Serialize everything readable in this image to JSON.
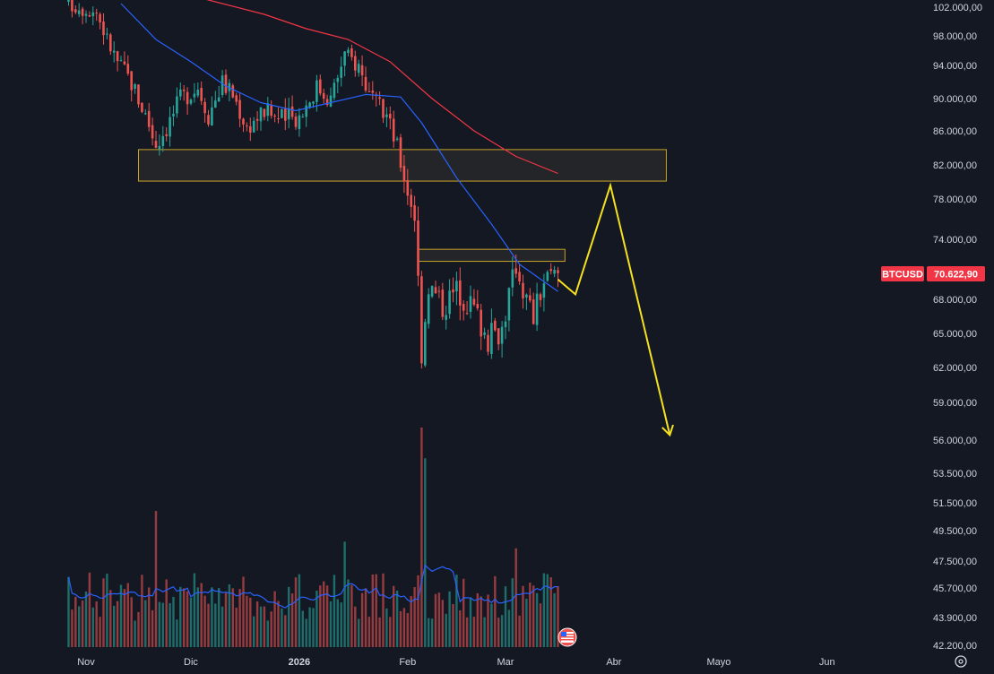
{
  "chart_data": {
    "type": "candlestick",
    "symbol_label": "BTCUSD",
    "last_price_label": "70.622,90",
    "last_price": 70622.9,
    "y_ticks": [
      {
        "value": 102000,
        "label": "102.000,00"
      },
      {
        "value": 98000,
        "label": "98.000,00"
      },
      {
        "value": 94000,
        "label": "94.000,00"
      },
      {
        "value": 90000,
        "label": "90.000,00"
      },
      {
        "value": 86000,
        "label": "86.000,00"
      },
      {
        "value": 82000,
        "label": "82.000,00"
      },
      {
        "value": 78000,
        "label": "78.000,00"
      },
      {
        "value": 74000,
        "label": "74.000,00"
      },
      {
        "value": 68000,
        "label": "68.000,00"
      },
      {
        "value": 65000,
        "label": "65.000,00"
      },
      {
        "value": 62000,
        "label": "62.000,00"
      },
      {
        "value": 59000,
        "label": "59.000,00"
      },
      {
        "value": 56000,
        "label": "56.000,00"
      },
      {
        "value": 53500,
        "label": "53.500,00"
      },
      {
        "value": 51500,
        "label": "51.500,00"
      },
      {
        "value": 49500,
        "label": "49.500,00"
      },
      {
        "value": 47500,
        "label": "47.500,00"
      },
      {
        "value": 45700,
        "label": "45.700,00"
      },
      {
        "value": 43900,
        "label": "43.900,00"
      },
      {
        "value": 42200,
        "label": "42.200,00"
      }
    ],
    "x_ticks": [
      {
        "date": "2025-11-01",
        "label": "Nov"
      },
      {
        "date": "2025-12-01",
        "label": "Dic"
      },
      {
        "date": "2026-01-01",
        "label": "2026"
      },
      {
        "date": "2026-02-01",
        "label": "Feb"
      },
      {
        "date": "2026-03-01",
        "label": "Mar"
      },
      {
        "date": "2026-04-01",
        "label": "Abr"
      },
      {
        "date": "2026-05-01",
        "label": "Mayo"
      },
      {
        "date": "2026-06-01",
        "label": "Jun"
      }
    ],
    "x_range": [
      "2025-10-23",
      "2026-06-16"
    ],
    "price_anchors": [
      {
        "date": "2025-10-27",
        "price": 102500
      },
      {
        "date": "2025-11-04",
        "price": 101500
      },
      {
        "date": "2025-11-07",
        "price": 97500
      },
      {
        "date": "2025-11-10",
        "price": 94500
      },
      {
        "date": "2025-11-14",
        "price": 92000
      },
      {
        "date": "2025-11-18",
        "price": 88000
      },
      {
        "date": "2025-11-21",
        "price": 84500
      },
      {
        "date": "2025-11-24",
        "price": 86500
      },
      {
        "date": "2025-11-28",
        "price": 90000
      },
      {
        "date": "2025-12-03",
        "price": 91500
      },
      {
        "date": "2025-12-06",
        "price": 88000
      },
      {
        "date": "2025-12-10",
        "price": 92000
      },
      {
        "date": "2025-12-13",
        "price": 90500
      },
      {
        "date": "2025-12-17",
        "price": 86500
      },
      {
        "date": "2025-12-22",
        "price": 88500
      },
      {
        "date": "2025-12-27",
        "price": 87500
      },
      {
        "date": "2026-01-01",
        "price": 87800
      },
      {
        "date": "2026-01-06",
        "price": 91500
      },
      {
        "date": "2026-01-10",
        "price": 90000
      },
      {
        "date": "2026-01-14",
        "price": 95500
      },
      {
        "date": "2026-01-18",
        "price": 94000
      },
      {
        "date": "2026-01-22",
        "price": 89500
      },
      {
        "date": "2026-01-26",
        "price": 88000
      },
      {
        "date": "2026-01-29",
        "price": 84000
      },
      {
        "date": "2026-02-01",
        "price": 79000
      },
      {
        "date": "2026-02-03",
        "price": 76500
      },
      {
        "date": "2026-02-05",
        "price": 63500
      },
      {
        "date": "2026-02-07",
        "price": 69500
      },
      {
        "date": "2026-02-11",
        "price": 67500
      },
      {
        "date": "2026-02-15",
        "price": 69000
      },
      {
        "date": "2026-02-20",
        "price": 67200
      },
      {
        "date": "2026-02-24",
        "price": 64500
      },
      {
        "date": "2026-02-28",
        "price": 65500
      },
      {
        "date": "2026-03-04",
        "price": 71500
      },
      {
        "date": "2026-03-07",
        "price": 68000
      },
      {
        "date": "2026-03-09",
        "price": 66500
      },
      {
        "date": "2026-03-12",
        "price": 69800
      },
      {
        "date": "2026-03-16",
        "price": 70622.9
      }
    ],
    "ma_fast": {
      "color": "#2962ff",
      "points": [
        {
          "date": "2025-11-11",
          "price": 102500
        },
        {
          "date": "2025-11-21",
          "price": 97500
        },
        {
          "date": "2025-12-01",
          "price": 94500
        },
        {
          "date": "2025-12-11",
          "price": 91500
        },
        {
          "date": "2025-12-21",
          "price": 89500
        },
        {
          "date": "2025-12-31",
          "price": 88500
        },
        {
          "date": "2026-01-10",
          "price": 89500
        },
        {
          "date": "2026-01-20",
          "price": 90500
        },
        {
          "date": "2026-01-30",
          "price": 90200
        },
        {
          "date": "2026-02-05",
          "price": 87000
        },
        {
          "date": "2026-02-15",
          "price": 80500
        },
        {
          "date": "2026-02-25",
          "price": 75500
        },
        {
          "date": "2026-03-05",
          "price": 71500
        },
        {
          "date": "2026-03-16",
          "price": 68800
        }
      ]
    },
    "ma_slow": {
      "color": "#f23645",
      "points": [
        {
          "date": "2025-11-28",
          "price": 104000
        },
        {
          "date": "2025-12-10",
          "price": 102500
        },
        {
          "date": "2025-12-22",
          "price": 101000
        },
        {
          "date": "2026-01-03",
          "price": 99000
        },
        {
          "date": "2026-01-15",
          "price": 97500
        },
        {
          "date": "2026-01-27",
          "price": 94500
        },
        {
          "date": "2026-02-08",
          "price": 90000
        },
        {
          "date": "2026-02-20",
          "price": 86000
        },
        {
          "date": "2026-03-04",
          "price": 83000
        },
        {
          "date": "2026-03-16",
          "price": 81000
        }
      ]
    },
    "zones": [
      {
        "start": "2025-11-16",
        "end": "2026-04-16",
        "high": 83800,
        "low": 80100
      },
      {
        "start": "2026-02-04",
        "end": "2026-03-18",
        "high": 73000,
        "low": 71800
      }
    ],
    "projection": {
      "color": "#f5e11f",
      "points": [
        {
          "date": "2026-03-16",
          "price": 70000
        },
        {
          "date": "2026-03-21",
          "price": 68500
        },
        {
          "date": "2026-03-31",
          "price": 79600
        },
        {
          "date": "2026-04-17",
          "price": 56400
        }
      ]
    },
    "volume": {
      "note_colors": {
        "up": "#26a69a",
        "down": "#ef5350",
        "ma": "#2962ff"
      },
      "spikes": [
        {
          "date": "2025-11-21",
          "level": 0.62
        },
        {
          "date": "2026-01-14",
          "level": 0.48
        },
        {
          "date": "2026-02-05",
          "level": 1.0
        },
        {
          "date": "2026-02-06",
          "level": 0.86
        },
        {
          "date": "2026-03-04",
          "level": 0.45
        }
      ]
    },
    "colors": {
      "background": "#141823",
      "up": "#26a69a",
      "down": "#ef5350",
      "axis_text": "#d1d4dc",
      "price_tag": "#f23645",
      "zone_border": "#c9a227",
      "zone_fill": "#262829"
    }
  }
}
